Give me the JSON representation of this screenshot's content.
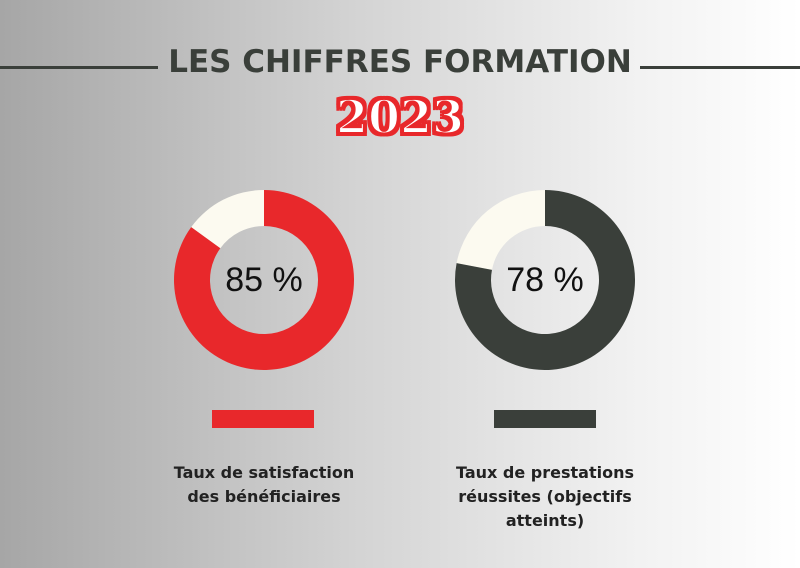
{
  "title": "LES CHIFFRES FORMATION",
  "year": "2023",
  "colors": {
    "red": "#e8282b",
    "dark": "#3a3f3a",
    "remainder": "#fcfaf0"
  },
  "chart_data": [
    {
      "type": "pie",
      "value": 85,
      "value_label": "85 %",
      "label_line1": "Taux de satisfaction",
      "label_line2": "des bénéficiaires",
      "label_line3": "",
      "color": "#e8282b"
    },
    {
      "type": "pie",
      "value": 78,
      "value_label": "78 %",
      "label_line1": "Taux de prestations",
      "label_line2": "réussites (objectifs",
      "label_line3": "atteints)",
      "color": "#3a3f3a"
    }
  ]
}
